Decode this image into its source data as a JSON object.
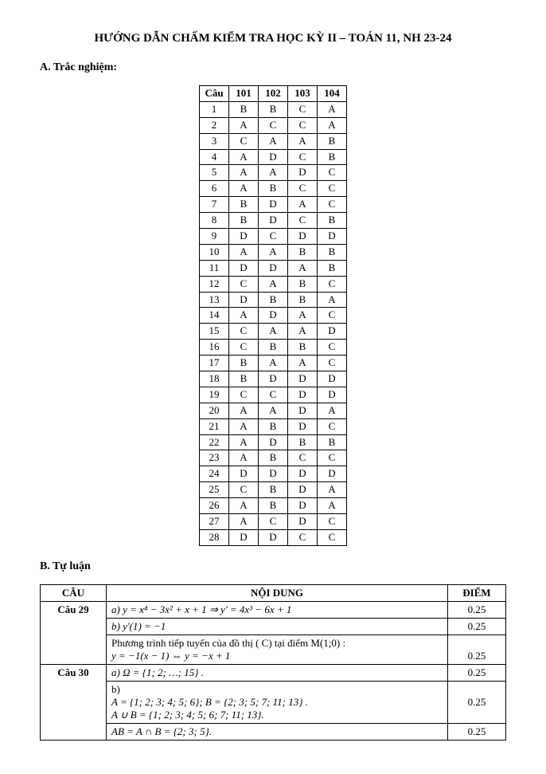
{
  "title": "HƯỚNG DẪN CHẤM KIỂM TRA HỌC KỲ II – TOÁN 11, NH 23-24",
  "sectionA": "A. Trắc nghiệm:",
  "sectionB": "B. Tự luận",
  "answerHeader": {
    "q": "Câu",
    "c1": "101",
    "c2": "102",
    "c3": "103",
    "c4": "104"
  },
  "answers": [
    {
      "n": "1",
      "a": "B",
      "b": "B",
      "c": "C",
      "d": "A"
    },
    {
      "n": "2",
      "a": "A",
      "b": "C",
      "c": "C",
      "d": "A"
    },
    {
      "n": "3",
      "a": "C",
      "b": "A",
      "c": "A",
      "d": "B"
    },
    {
      "n": "4",
      "a": "A",
      "b": "D",
      "c": "C",
      "d": "B"
    },
    {
      "n": "5",
      "a": "A",
      "b": "A",
      "c": "D",
      "d": "C"
    },
    {
      "n": "6",
      "a": "A",
      "b": "B",
      "c": "C",
      "d": "C"
    },
    {
      "n": "7",
      "a": "B",
      "b": "D",
      "c": "A",
      "d": "C"
    },
    {
      "n": "8",
      "a": "B",
      "b": "D",
      "c": "C",
      "d": "B"
    },
    {
      "n": "9",
      "a": "D",
      "b": "C",
      "c": "D",
      "d": "D"
    },
    {
      "n": "10",
      "a": "A",
      "b": "A",
      "c": "B",
      "d": "B"
    },
    {
      "n": "11",
      "a": "D",
      "b": "D",
      "c": "A",
      "d": "B"
    },
    {
      "n": "12",
      "a": "C",
      "b": "A",
      "c": "B",
      "d": "C"
    },
    {
      "n": "13",
      "a": "D",
      "b": "B",
      "c": "B",
      "d": "A"
    },
    {
      "n": "14",
      "a": "A",
      "b": "D",
      "c": "A",
      "d": "C"
    },
    {
      "n": "15",
      "a": "C",
      "b": "A",
      "c": "A",
      "d": "D"
    },
    {
      "n": "16",
      "a": "C",
      "b": "B",
      "c": "B",
      "d": "C"
    },
    {
      "n": "17",
      "a": "B",
      "b": "A",
      "c": "A",
      "d": "C"
    },
    {
      "n": "18",
      "a": "B",
      "b": "D",
      "c": "D",
      "d": "D"
    },
    {
      "n": "19",
      "a": "C",
      "b": "C",
      "c": "D",
      "d": "D"
    },
    {
      "n": "20",
      "a": "A",
      "b": "A",
      "c": "D",
      "d": "A"
    },
    {
      "n": "21",
      "a": "A",
      "b": "B",
      "c": "D",
      "d": "C"
    },
    {
      "n": "22",
      "a": "A",
      "b": "D",
      "c": "B",
      "d": "B"
    },
    {
      "n": "23",
      "a": "A",
      "b": "B",
      "c": "C",
      "d": "C"
    },
    {
      "n": "24",
      "a": "D",
      "b": "D",
      "c": "D",
      "d": "D"
    },
    {
      "n": "25",
      "a": "C",
      "b": "B",
      "c": "D",
      "d": "A"
    },
    {
      "n": "26",
      "a": "A",
      "b": "B",
      "c": "D",
      "d": "A"
    },
    {
      "n": "27",
      "a": "A",
      "b": "C",
      "c": "D",
      "d": "C"
    },
    {
      "n": "28",
      "a": "D",
      "b": "D",
      "c": "C",
      "d": "C"
    }
  ],
  "essayHeader": {
    "cau": "CÂU",
    "nd": "NỘI DUNG",
    "diem": "ĐIỂM"
  },
  "essay": {
    "q29": {
      "label": "Câu 29",
      "r1": {
        "text": "a) y = x⁴ − 3x² + x + 1 ⇒ y' = 4x³ − 6x + 1",
        "score": "0.25"
      },
      "r2": {
        "text": "b)  y'(1) = −1",
        "score": "0.25"
      },
      "r3a": "Phương trình tiếp tuyến của đồ thị ( C)  tại điểm  M(1;0) :",
      "r3b": "   y = −1(x − 1)  ⇔  y = −x + 1",
      "r3score": "0.25"
    },
    "q30": {
      "label": "Câu 30",
      "r1": {
        "text": "a) Ω = {1; 2; …; 15} .",
        "score": "0.25"
      },
      "r2a": "b)",
      "r2b": "A = {1; 2; 3; 4; 5; 6}; B = {2; 3; 5; 7; 11; 13} .",
      "r2c": "A ∪ B = {1; 2; 3; 4; 5; 6; 7; 11; 13}.",
      "r2score": "0.25",
      "r3": {
        "text": "AB = A ∩ B = {2; 3; 5}.",
        "score": "0.25"
      }
    }
  }
}
